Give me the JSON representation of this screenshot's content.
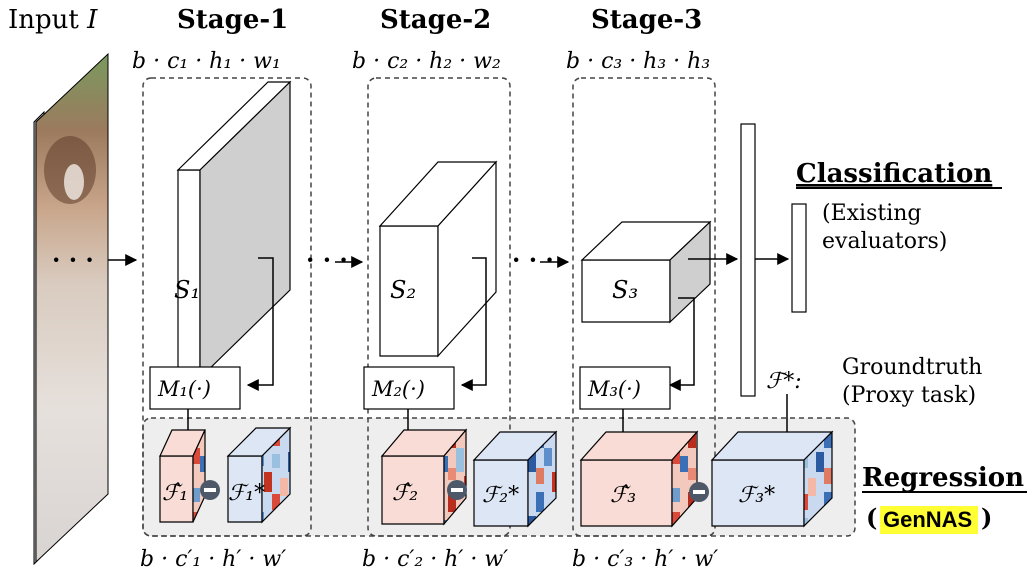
{
  "labels": {
    "input": "Input 𝐼",
    "stage1": "Stage-1",
    "stage2": "Stage-2",
    "stage3": "Stage-3",
    "dims_top_1": "b · c₁ · h₁ · w₁",
    "dims_top_2": "b · c₂ · h₂ · w₂",
    "dims_top_3": "b · c₃ · h₃ · h₃",
    "dims_bottom_1": "b · c′₁ · h′ · w′",
    "dims_bottom_2": "b · c′₂ · h′ · w′",
    "dims_bottom_3": "b · c′₃ · h′ · w′",
    "s1": "S₁",
    "s2": "S₂",
    "s3": "S₃",
    "m1": "M₁(·)",
    "m2": "M₂(·)",
    "m3": "M₃(·)",
    "f1_hat": "ℱ̂₁",
    "f2_hat": "ℱ̂₂",
    "f3_hat": "ℱ̂₃",
    "f1_star": "ℱ₁*",
    "f2_star": "ℱ₂*",
    "f3_star": "ℱ₃*",
    "f_star": "ℱ*:",
    "groundtruth": "Groundtruth",
    "proxy_task": "(Proxy task)",
    "classification": "Classification",
    "existing": "(Existing",
    "evaluators": "evaluators)",
    "regression": "Regression",
    "paren_open": "(",
    "paren_close": ")",
    "gennas": "GenNAS",
    "dots": "· · ·"
  },
  "colors": {
    "pred_face": "#f9dcd6",
    "gt_face": "#dde6f5",
    "gray_face": "#cfcfcf",
    "regression_bg": "#eeeeee",
    "gennas_bg": "#ffff33"
  }
}
